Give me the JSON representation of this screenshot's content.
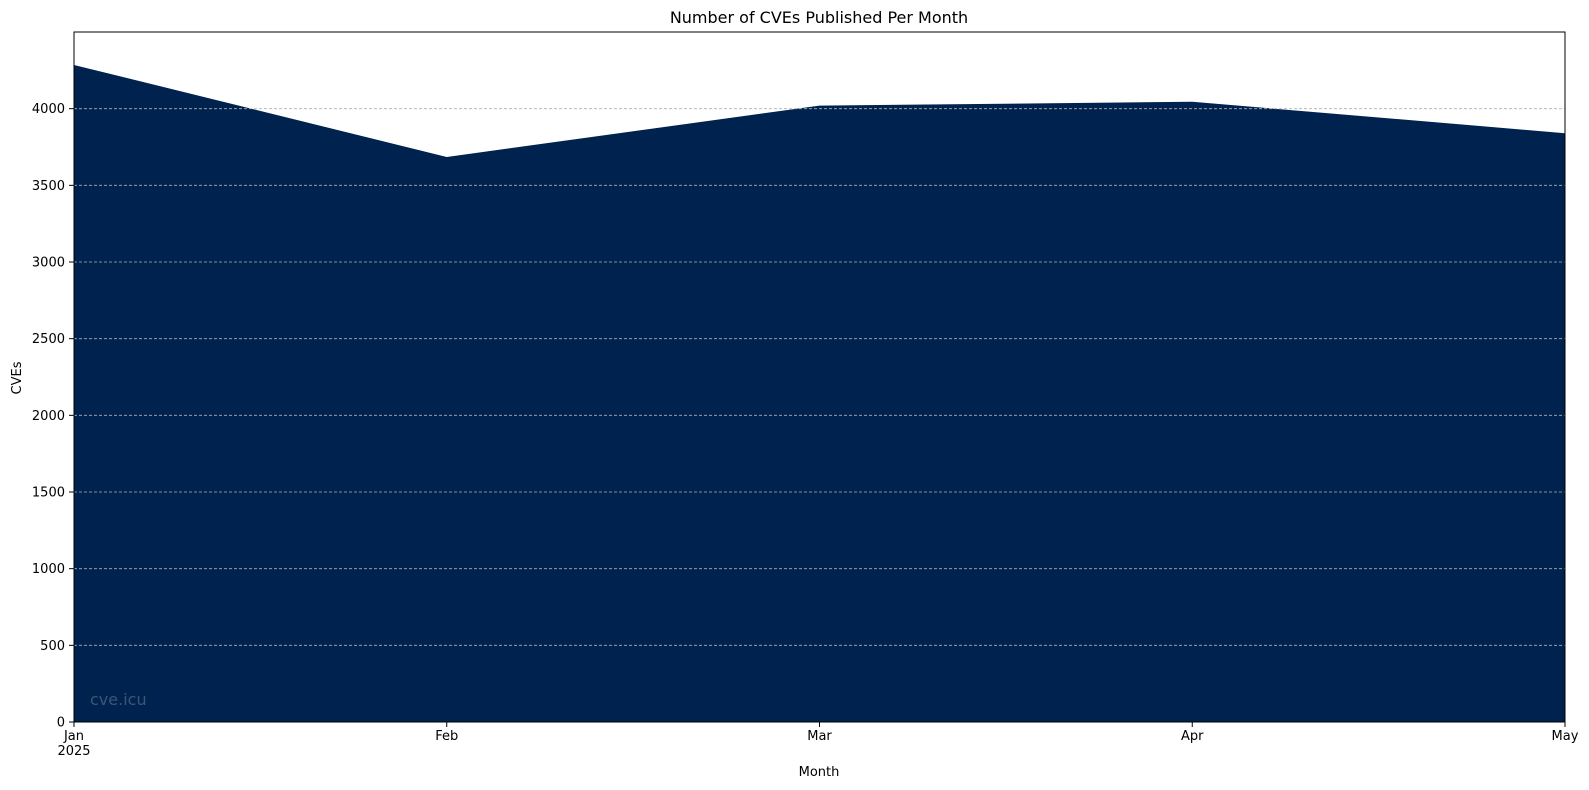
{
  "chart_data": {
    "type": "area",
    "title": "Number of CVEs Published Per Month",
    "xlabel": "Month",
    "ylabel": "CVEs",
    "categories": [
      "Jan",
      "Feb",
      "Mar",
      "Apr",
      "May"
    ],
    "year_label": "2025",
    "values": [
      4285,
      3685,
      4020,
      4045,
      3840
    ],
    "ylim": [
      0,
      4500
    ],
    "yticks": [
      0,
      500,
      1000,
      1500,
      2000,
      2500,
      3000,
      3500,
      4000
    ],
    "grid": "horizontal dashed",
    "fill_color": "#00224e",
    "watermark": "cve.icu"
  }
}
